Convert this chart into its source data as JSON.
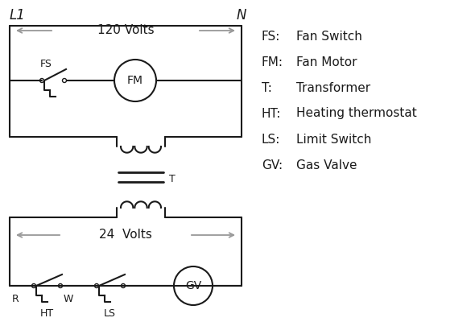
{
  "bg_color": "#ffffff",
  "line_color": "#1a1a1a",
  "arrow_color": "#999999",
  "legend": [
    [
      "FS:",
      "Fan Switch"
    ],
    [
      "FM:",
      "Fan Motor"
    ],
    [
      "T:",
      "Transformer"
    ],
    [
      "HT:",
      "Heating thermostat"
    ],
    [
      "LS:",
      "Limit Switch"
    ],
    [
      "GV:",
      "Gas Valve"
    ]
  ],
  "title_L1": "L1",
  "title_N": "N",
  "volts_120": "120 Volts",
  "volts_24": "24  Volts",
  "label_T": "T",
  "label_R": "R",
  "label_W": "W",
  "label_FS": "FS",
  "label_FM": "FM",
  "label_HT": "HT",
  "label_LS": "LS",
  "label_GV": "GV"
}
